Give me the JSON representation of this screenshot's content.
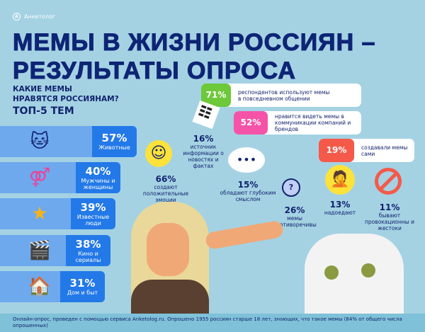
{
  "brand": {
    "name": "Анкетолог",
    "logo_letter": "А"
  },
  "title": {
    "line1": "МЕМЫ В ЖИЗНИ РОССИЯН –",
    "line2": "РЕЗУЛЬТАТЫ ОПРОСА"
  },
  "subtitle": {
    "line1": "КАКИЕ МЕМЫ",
    "line2": "НРАВЯТСЯ РОССИЯНАМ?",
    "line3": "ТОП-5 ТЕМ"
  },
  "topics": [
    {
      "value": "57%",
      "label": "Животные",
      "icon": "cat-icon"
    },
    {
      "value": "40%",
      "label": "Мужчины и женщины",
      "icon": "gender-icon"
    },
    {
      "value": "39%",
      "label": "Известные люди",
      "icon": "star-person-icon"
    },
    {
      "value": "38%",
      "label": "Кино и сериалы",
      "icon": "clapperboard-icon"
    },
    {
      "value": "31%",
      "label": "Дом и быт",
      "icon": "house-icon"
    }
  ],
  "stats": [
    {
      "value": "71%",
      "text": "респондентов используют мемы в повседневном общении",
      "color": "#6dc83a"
    },
    {
      "value": "52%",
      "text": "нравится видеть мемы в коммуникации компаний и брендов",
      "color": "#f553a8"
    },
    {
      "value": "19%",
      "text": "создавали мемы сами",
      "color": "#f5594a"
    }
  ],
  "notes": [
    {
      "value": "66%",
      "text": "создают положительные эмоции",
      "icon": "smiley-icon"
    },
    {
      "value": "16%",
      "text": "источник информации о новостях и фактах",
      "icon": "receipt-icon"
    },
    {
      "value": "15%",
      "text": "обладают глубоким смыслом",
      "icon": "speech-bubble-icon"
    },
    {
      "value": "26%",
      "text": "мемы противоречивы",
      "icon": "magnifier-icon"
    },
    {
      "value": "13%",
      "text": "надоедают",
      "icon": "facepalm-icon"
    },
    {
      "value": "11%",
      "text": "бывают провокационны и жестоки",
      "icon": "prohibited-icon"
    }
  ],
  "footer": "Онлайн-опрос, проведен с помощью сервиса Anketolog.ru. Опрошено 1955 россиян старше 18 лет, знающих, что такое мемы (84% от общего числа опрошенных)"
}
